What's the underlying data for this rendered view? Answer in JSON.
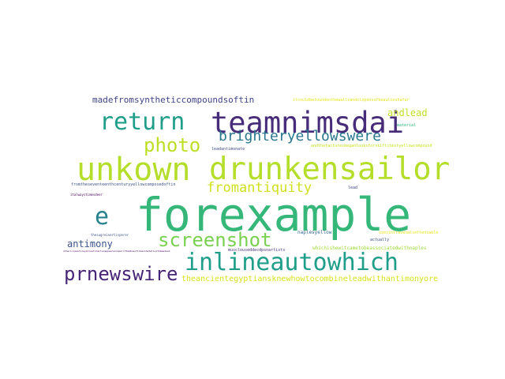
{
  "wordcloud": {
    "words": [
      {
        "text": "forexample",
        "color": "#35b779"
      },
      {
        "text": "unkown",
        "color": "#b5de2b"
      },
      {
        "text": "drunkensailor",
        "color": "#b5de2b"
      },
      {
        "text": "teamnimsdai",
        "color": "#472c7a"
      },
      {
        "text": "return",
        "color": "#1f9e89"
      },
      {
        "text": "inlineautowhich",
        "color": "#1f9e89"
      },
      {
        "text": "prnewswire",
        "color": "#482677"
      },
      {
        "text": "screenshot",
        "color": "#7ad151"
      },
      {
        "text": "brighteryellowswere",
        "color": "#2a788e"
      },
      {
        "text": "photo",
        "color": "#bddf26"
      },
      {
        "text": "fromantiquity",
        "color": "#d0e11c"
      },
      {
        "text": "e",
        "color": "#26828e"
      },
      {
        "text": "andlead",
        "color": "#c2df23"
      },
      {
        "text": "antimony",
        "color": "#3b528b"
      },
      {
        "text": "madefromsyntheticcompoundsoftin",
        "color": "#414487"
      },
      {
        "text": "theancientegyptiansknewhowtocombineleadwithantimonyore",
        "color": "#d8e219"
      },
      {
        "text": "itcouldbefoundonthewallsandclopensofbeautieshafur",
        "color": "#e5e419"
      },
      {
        "text": "material",
        "color": "#2db27d"
      },
      {
        "text": "andthefacturesbeganlooksforskiftchestyellowcompound",
        "color": "#c8e020"
      },
      {
        "text": "leadantimonate",
        "color": "#3e4a89"
      },
      {
        "text": "fromtheseventeenthcenturyyellowcomposedoftin",
        "color": "#3b528b"
      },
      {
        "text": "lead",
        "color": "#414487"
      },
      {
        "text": "italwaystimesdeer",
        "color": "#440154"
      },
      {
        "text": "naplesyellow",
        "color": "#31688e"
      },
      {
        "text": "actually",
        "color": "#3e4a89"
      },
      {
        "text": "usesintravenalsoftensable",
        "color": "#e5e419"
      },
      {
        "text": "thesugreinertisperer",
        "color": "#3b528b"
      },
      {
        "text": "othericipesforayellowfromclarappearanceperiftembosofilmenshateliwithmeadand",
        "color": "#440154"
      },
      {
        "text": "musclouseddecdpsnartists",
        "color": "#46337e"
      },
      {
        "text": "whichishewitcametobeassociatedwithnaples",
        "color": "#a0da39"
      }
    ]
  }
}
